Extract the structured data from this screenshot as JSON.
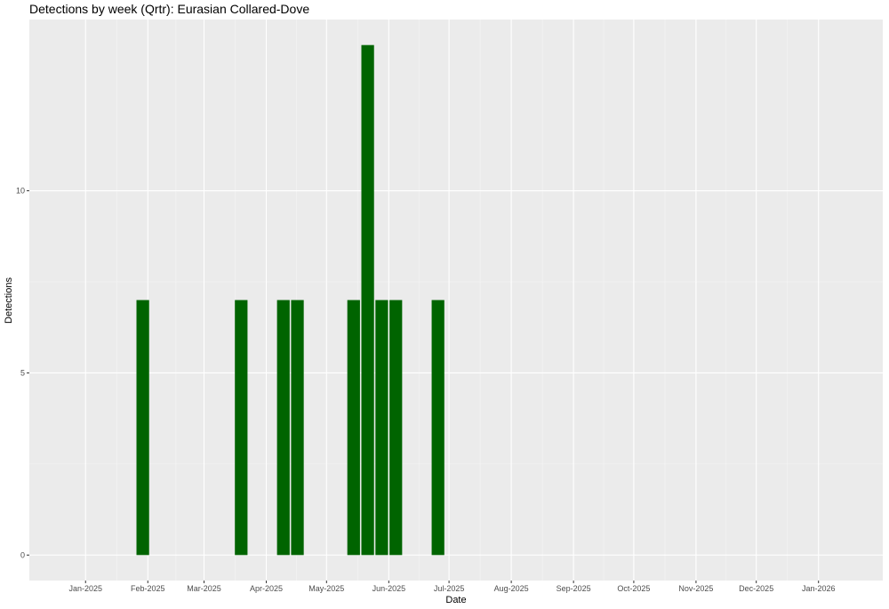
{
  "chart_data": {
    "type": "bar",
    "title": "Detections by week (Qrtr): Eurasian Collared-Dove",
    "xlabel": "Date",
    "ylabel": "Detections",
    "x_range": [
      "2024-12-04",
      "2026-02-02"
    ],
    "ylim": [
      -0.7,
      14.7
    ],
    "y_ticks": [
      0,
      5,
      10
    ],
    "y_tick_labels": [
      "0",
      "5",
      "10"
    ],
    "x_ticks": [
      "2025-01-01",
      "2025-02-01",
      "2025-03-01",
      "2025-04-01",
      "2025-05-01",
      "2025-06-01",
      "2025-07-01",
      "2025-08-01",
      "2025-09-01",
      "2025-10-01",
      "2025-11-01",
      "2025-12-01",
      "2026-01-01"
    ],
    "x_tick_labels": [
      "Jan-2025",
      "Feb-2025",
      "Mar-2025",
      "Apr-2025",
      "May-2025",
      "Jun-2025",
      "Jul-2025",
      "Aug-2025",
      "Sep-2025",
      "Oct-2025",
      "Nov-2025",
      "Dec-2025",
      "Jan-2026"
    ],
    "bar_color": "#006400",
    "panel_color": "#ebebeb",
    "grid": true,
    "bars": [
      {
        "week_start": "2025-01-26",
        "value": 7
      },
      {
        "week_start": "2025-03-16",
        "value": 7
      },
      {
        "week_start": "2025-04-06",
        "value": 7
      },
      {
        "week_start": "2025-04-13",
        "value": 7
      },
      {
        "week_start": "2025-05-11",
        "value": 7
      },
      {
        "week_start": "2025-05-18",
        "value": 14
      },
      {
        "week_start": "2025-05-25",
        "value": 7
      },
      {
        "week_start": "2025-06-01",
        "value": 7
      },
      {
        "week_start": "2025-06-22",
        "value": 7
      }
    ]
  }
}
